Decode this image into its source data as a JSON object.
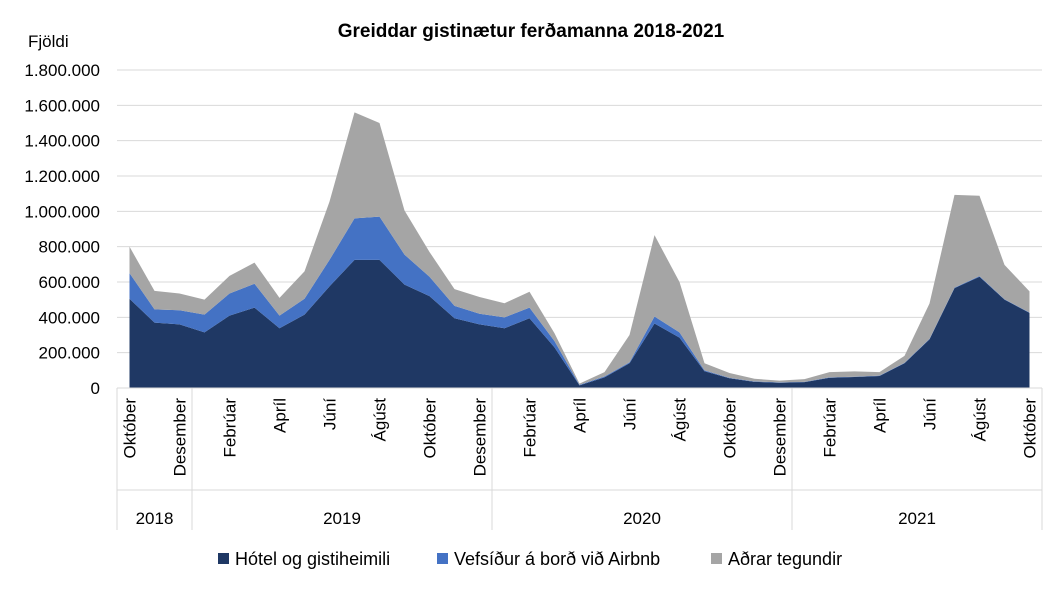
{
  "chart_data": {
    "type": "area",
    "stacked": true,
    "title": "Greiddar gistinætur ferðamanna 2018-2021",
    "ylabel": "Fjöldi",
    "ylim": [
      0,
      1800000
    ],
    "yticks": [
      0,
      200000,
      400000,
      600000,
      800000,
      1000000,
      1200000,
      1400000,
      1600000,
      1800000
    ],
    "ytick_labels": [
      "0",
      "200.000",
      "400.000",
      "600.000",
      "800.000",
      "1.000.000",
      "1.200.000",
      "1.400.000",
      "1.600.000",
      "1.800.000"
    ],
    "grid": true,
    "legend_position": "bottom",
    "x": [
      "2018-10",
      "2018-11",
      "2018-12",
      "2019-01",
      "2019-02",
      "2019-03",
      "2019-04",
      "2019-05",
      "2019-06",
      "2019-07",
      "2019-08",
      "2019-09",
      "2019-10",
      "2019-11",
      "2019-12",
      "2020-01",
      "2020-02",
      "2020-03",
      "2020-04",
      "2020-05",
      "2020-06",
      "2020-07",
      "2020-08",
      "2020-09",
      "2020-10",
      "2020-11",
      "2020-12",
      "2021-01",
      "2021-02",
      "2021-03",
      "2021-04",
      "2021-05",
      "2021-06",
      "2021-07",
      "2021-08",
      "2021-09",
      "2021-10"
    ],
    "month_labels": [
      "Október",
      "",
      "Desember",
      "",
      "Febrúar",
      "",
      "Apríl",
      "",
      "Júní",
      "",
      "Ágúst",
      "",
      "Október",
      "",
      "Desember",
      "",
      "Febrúar",
      "",
      "Apríl",
      "",
      "Júní",
      "",
      "Ágúst",
      "",
      "Október",
      "",
      "Desember",
      "",
      "Febrúar",
      "",
      "Apríl",
      "",
      "Júní",
      "",
      "Ágúst",
      "",
      "Október"
    ],
    "year_groups": [
      {
        "label": "2018",
        "start": 0,
        "end": 2
      },
      {
        "label": "2019",
        "start": 3,
        "end": 14
      },
      {
        "label": "2020",
        "start": 15,
        "end": 26
      },
      {
        "label": "2021",
        "start": 27,
        "end": 36
      }
    ],
    "series": [
      {
        "name": "Hótel og gistiheimili",
        "color": "#1f3864",
        "values": [
          505000,
          370000,
          360000,
          315000,
          410000,
          455000,
          338000,
          415000,
          575000,
          725000,
          725000,
          585000,
          520000,
          395000,
          360000,
          338000,
          395000,
          230000,
          15000,
          60000,
          140000,
          365000,
          285000,
          95000,
          55000,
          35000,
          30000,
          33000,
          58000,
          62000,
          68000,
          140000,
          275000,
          565000,
          630000,
          500000,
          425000
        ]
      },
      {
        "name": "Vefsíður á borð við Airbnb",
        "color": "#4472c4",
        "values": [
          145000,
          75000,
          80000,
          100000,
          125000,
          135000,
          72000,
          90000,
          150000,
          235000,
          245000,
          170000,
          110000,
          70000,
          60000,
          62000,
          60000,
          35000,
          3000,
          5000,
          5000,
          40000,
          30000,
          5000,
          2000,
          2000,
          2000,
          2000,
          2000,
          2000,
          2000,
          2000,
          3000,
          3000,
          3000,
          2000,
          2000
        ]
      },
      {
        "name": "Aðrar tegundir",
        "color": "#a5a5a5",
        "values": [
          150000,
          105000,
          95000,
          85000,
          100000,
          120000,
          100000,
          155000,
          330000,
          600000,
          530000,
          250000,
          140000,
          95000,
          95000,
          80000,
          90000,
          45000,
          7000,
          25000,
          155000,
          460000,
          285000,
          40000,
          28000,
          15000,
          10000,
          15000,
          30000,
          30000,
          20000,
          40000,
          200000,
          525000,
          455000,
          195000,
          120000
        ]
      }
    ]
  }
}
